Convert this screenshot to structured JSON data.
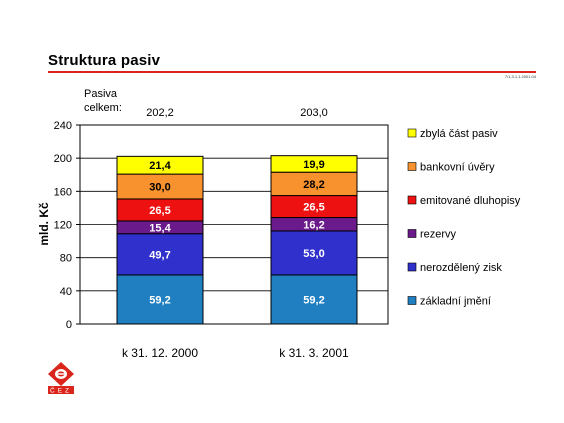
{
  "slide": {
    "title": "Struktura pasiv",
    "ref_code": "7/1.3.1.1.2001.04",
    "total_label_line1": "Pasiva",
    "total_label_line2": "celkem:"
  },
  "logo": {
    "text": "ČEZ",
    "color": "#d9251c"
  },
  "chart_data": {
    "type": "bar",
    "stacked": true,
    "categories": [
      "k 31. 12. 2000",
      "k 31. 3. 2001"
    ],
    "totals": [
      "202,2",
      "203,0"
    ],
    "ylabel": "mld. Kč",
    "ylim": [
      0,
      240
    ],
    "yticks": [
      0,
      40,
      80,
      120,
      160,
      200,
      240
    ],
    "grid": true,
    "legend_position": "right",
    "series": [
      {
        "name": "základní jmění",
        "color": "#1f7fc1",
        "text_color": "#ffffff",
        "values": [
          59.2,
          59.2
        ],
        "labels": [
          "59,2",
          "59,2"
        ]
      },
      {
        "name": "nerozdělený zisk",
        "color": "#3030cc",
        "text_color": "#ffffff",
        "values": [
          49.7,
          53.0
        ],
        "labels": [
          "49,7",
          "53,0"
        ]
      },
      {
        "name": "rezervy",
        "color": "#6a1a8a",
        "text_color": "#ffffff",
        "values": [
          15.4,
          16.2
        ],
        "labels": [
          "15,4",
          "16,2"
        ]
      },
      {
        "name": "emitované dluhopisy",
        "color": "#ee1111",
        "text_color": "#ffffff",
        "values": [
          26.5,
          26.5
        ],
        "labels": [
          "26,5",
          "26,5"
        ]
      },
      {
        "name": "bankovní úvěry",
        "color": "#f7922e",
        "text_color": "#000000",
        "values": [
          30.0,
          28.2
        ],
        "labels": [
          "30,0",
          "28,2"
        ]
      },
      {
        "name": "zbylá část pasiv",
        "color": "#ffff00",
        "text_color": "#000000",
        "values": [
          21.4,
          19.9
        ],
        "labels": [
          "21,4",
          "19,9"
        ]
      }
    ],
    "legend_order": [
      "zbylá část pasiv",
      "bankovní úvěry",
      "emitované dluhopisy",
      "rezervy",
      "nerozdělený zisk",
      "základní jmění"
    ]
  }
}
